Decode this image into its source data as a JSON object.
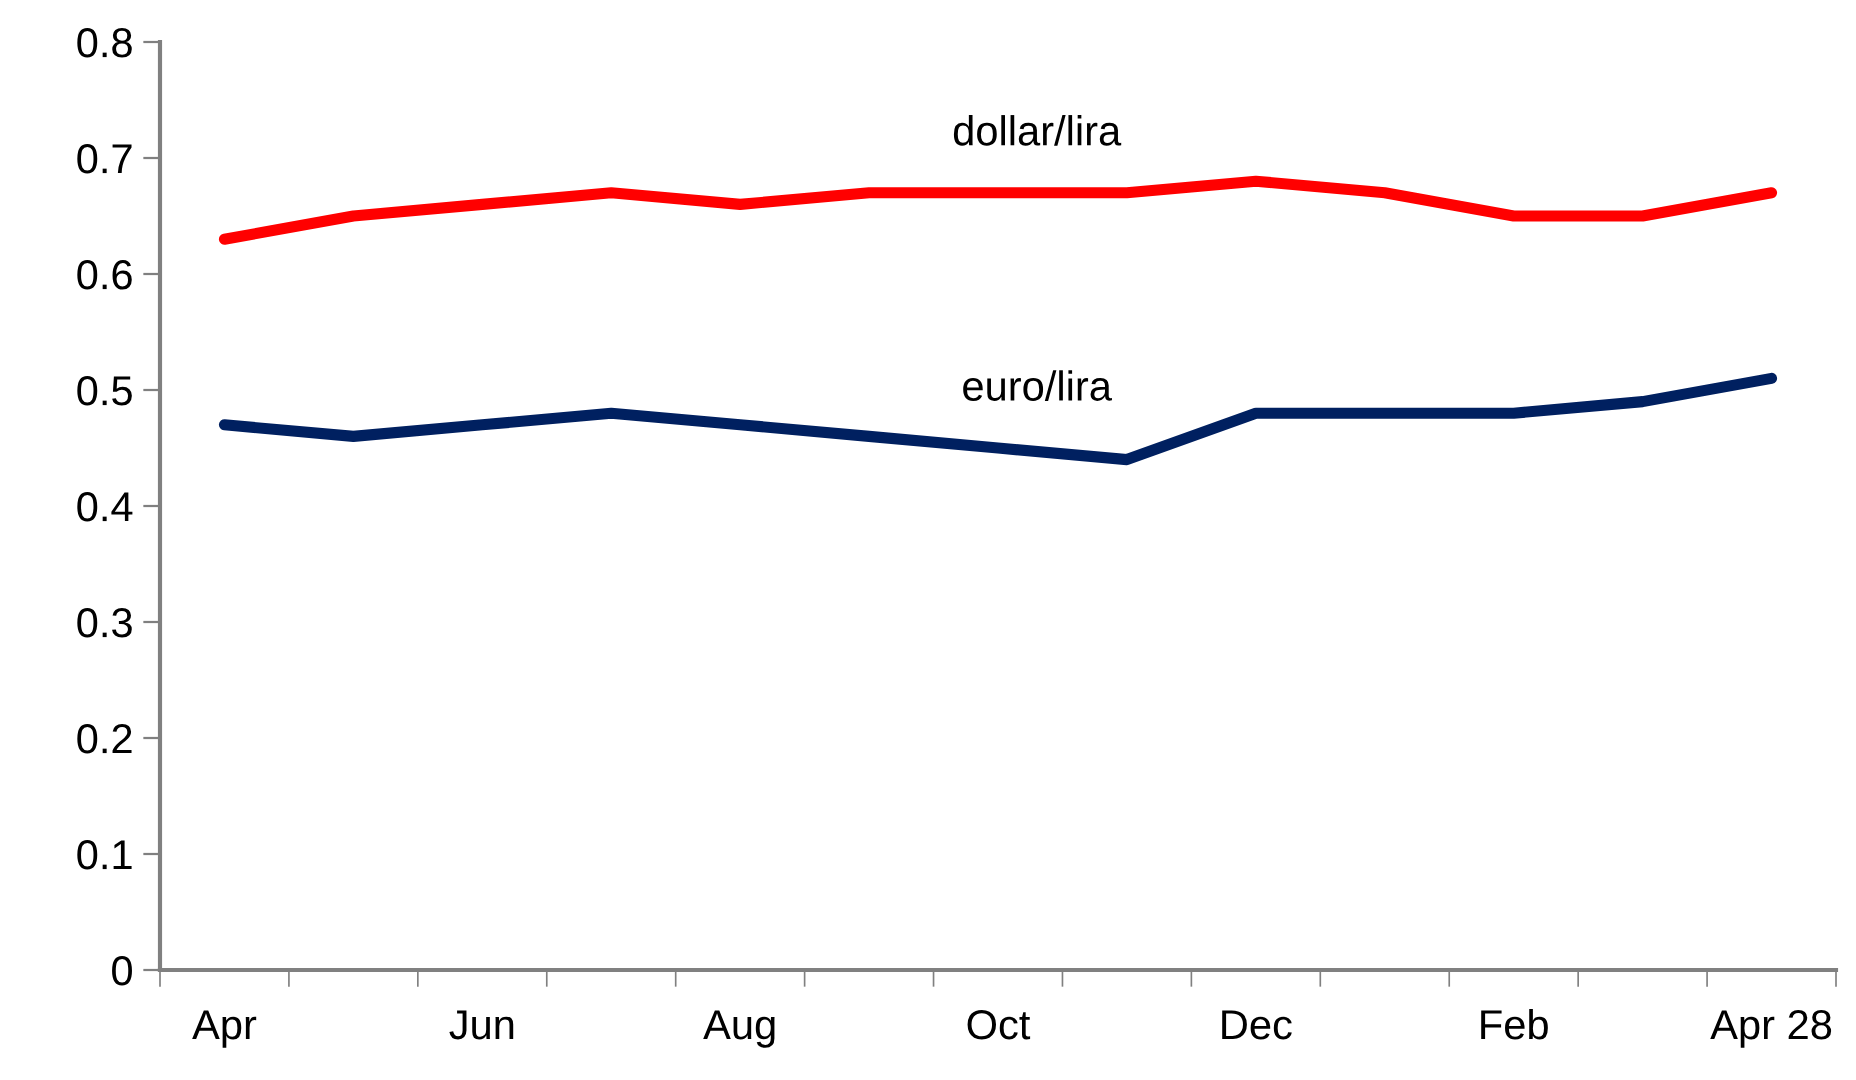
{
  "chart_data": {
    "type": "line",
    "categories": [
      "Apr",
      null,
      "Jun",
      null,
      "Aug",
      null,
      "Oct",
      null,
      "Dec",
      null,
      "Feb",
      null,
      "Apr 28"
    ],
    "series": [
      {
        "name": "dollar/lira",
        "color": "#ff0000",
        "values": [
          0.63,
          0.65,
          0.66,
          0.67,
          0.66,
          0.67,
          0.67,
          0.67,
          0.68,
          0.67,
          0.65,
          0.65,
          0.67
        ]
      },
      {
        "name": "euro/lira",
        "color": "#002060",
        "values": [
          0.47,
          0.46,
          0.47,
          0.48,
          0.47,
          0.46,
          0.45,
          0.44,
          0.48,
          0.48,
          0.48,
          0.49,
          0.51
        ]
      }
    ],
    "ylim": [
      0,
      0.8
    ],
    "yticks": [
      0,
      0.1,
      0.2,
      0.3,
      0.4,
      0.5,
      0.6,
      0.7,
      0.8
    ],
    "grid": false,
    "legend": false,
    "marker": "none",
    "line_style": "solid"
  }
}
